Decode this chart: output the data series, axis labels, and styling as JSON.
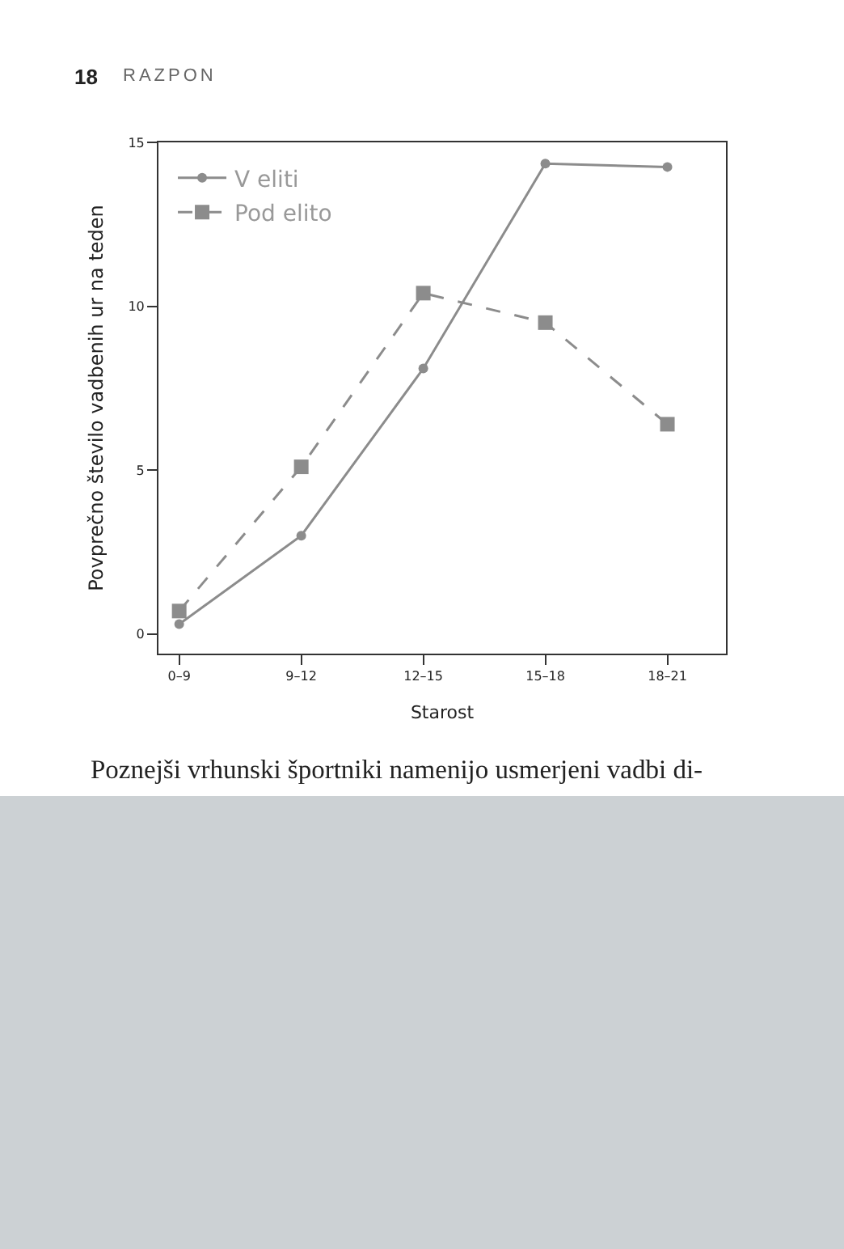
{
  "chart_data": {
    "type": "line",
    "xlabel": "Starost",
    "ylabel": "Povprečno število vadbenih ur na teden",
    "categories": [
      "0–9",
      "9–12",
      "12–15",
      "15–18",
      "18–21"
    ],
    "series": [
      {
        "name": "V eliti",
        "color": "#8c8c8c",
        "marker": "circle",
        "line_style": "solid",
        "values": [
          0.3,
          3.0,
          8.1,
          14.35,
          14.25
        ]
      },
      {
        "name": "Pod elito",
        "color": "#8c8c8c",
        "marker": "square",
        "line_style": "dashed",
        "values": [
          0.7,
          5.1,
          10.4,
          9.5,
          6.4
        ]
      }
    ],
    "ylim": [
      -0.6,
      15
    ],
    "yticks": [
      0,
      5,
      10,
      15
    ],
    "grid": false,
    "legend": "top left",
    "annotations": [
      "18",
      "RAZPON",
      "Poznejši vrhunski športniki namenijo usmerjeni vadbi di-"
    ]
  }
}
